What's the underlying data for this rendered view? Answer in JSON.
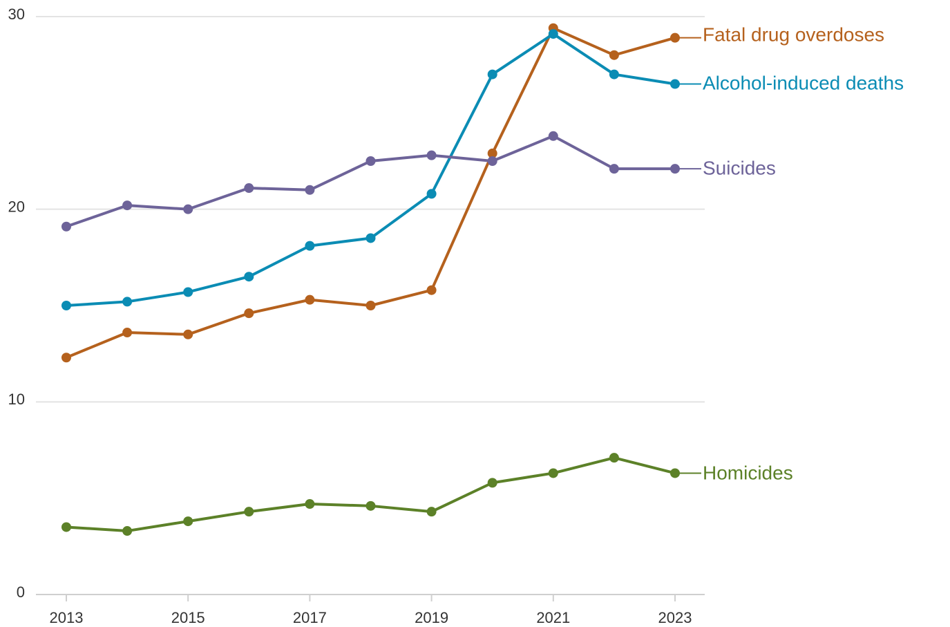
{
  "chart_data": {
    "type": "line",
    "title": "",
    "xlabel": "",
    "ylabel": "",
    "x": [
      2013,
      2014,
      2015,
      2016,
      2017,
      2018,
      2019,
      2020,
      2021,
      2022,
      2023
    ],
    "x_ticks": [
      "2013",
      "2015",
      "2017",
      "2019",
      "2021",
      "2023"
    ],
    "y_ticks": [
      "0",
      "10",
      "20",
      "30"
    ],
    "ylim": [
      0,
      30
    ],
    "xlim": [
      2013,
      2023
    ],
    "grid": true,
    "series": [
      {
        "name": "Fatal drug overdoses",
        "color": "#b5611d",
        "values": [
          12.3,
          13.6,
          13.5,
          14.6,
          15.3,
          15.0,
          15.8,
          22.9,
          29.4,
          28.0,
          28.9
        ]
      },
      {
        "name": "Alcohol-induced deaths",
        "color": "#0b8cb4",
        "values": [
          15.0,
          15.2,
          15.7,
          16.5,
          18.1,
          18.5,
          20.8,
          27.0,
          29.1,
          27.0,
          26.5
        ]
      },
      {
        "name": "Suicides",
        "color": "#6d6399",
        "values": [
          19.1,
          20.2,
          20.0,
          21.1,
          21.0,
          22.5,
          22.8,
          22.5,
          23.8,
          22.1,
          22.1
        ]
      },
      {
        "name": "Homicides",
        "color": "#5c8128",
        "values": [
          3.5,
          3.3,
          3.8,
          4.3,
          4.7,
          4.6,
          4.3,
          5.8,
          6.3,
          7.1,
          6.3
        ]
      }
    ]
  }
}
